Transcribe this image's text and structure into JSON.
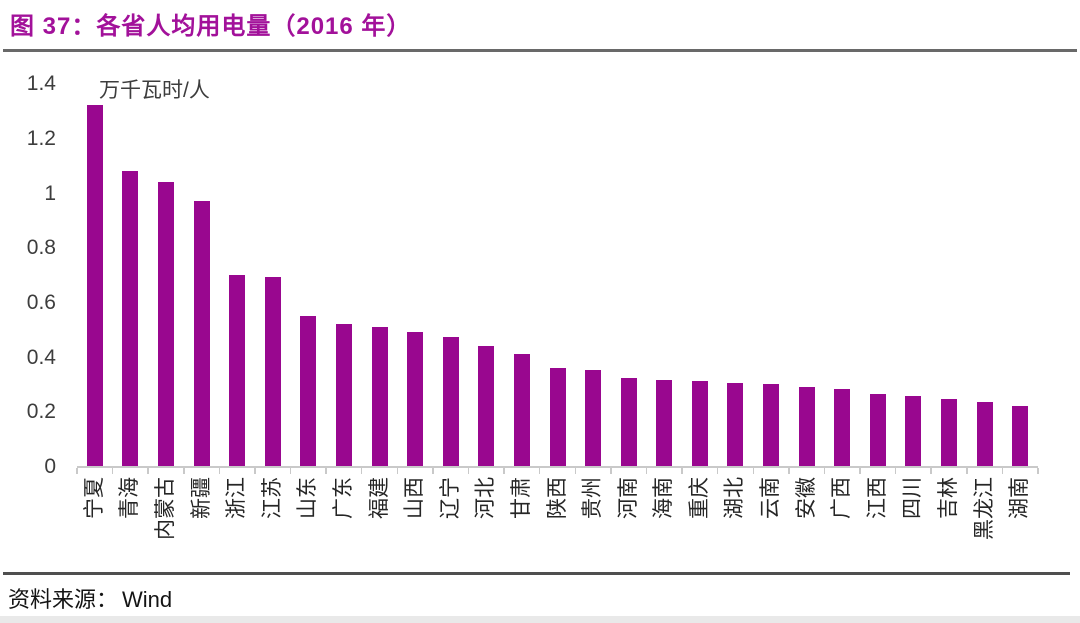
{
  "title": "图 37：各省人均用电量（2016 年）",
  "source": {
    "prefix": "资料来源：",
    "name": "Wind"
  },
  "colors": {
    "title": "#A2119A",
    "bar": "#99078F",
    "axis_line": "#C9C9C9",
    "axis_text": "#3D3D3D",
    "category_text": "#262626",
    "rule_dark": "#4F4F4F"
  },
  "chart_data": {
    "type": "bar",
    "title": "各省人均用电量（2016 年）",
    "unit_label": "万千瓦时/人",
    "xlabel": "",
    "ylabel": "万千瓦时/人",
    "categories": [
      "宁夏",
      "青海",
      "内蒙古",
      "新疆",
      "浙江",
      "江苏",
      "山东",
      "广东",
      "福建",
      "山西",
      "辽宁",
      "河北",
      "甘肃",
      "陕西",
      "贵州",
      "河南",
      "海南",
      "重庆",
      "湖北",
      "云南",
      "安徽",
      "广西",
      "江西",
      "四川",
      "吉林",
      "黑龙江",
      "湖南"
    ],
    "values": [
      1.32,
      1.08,
      1.04,
      0.97,
      0.7,
      0.69,
      0.55,
      0.52,
      0.51,
      0.49,
      0.47,
      0.44,
      0.41,
      0.36,
      0.35,
      0.32,
      0.315,
      0.31,
      0.302,
      0.298,
      0.29,
      0.28,
      0.262,
      0.256,
      0.246,
      0.235,
      0.22
    ],
    "ylim": [
      0,
      1.4
    ],
    "yticks": [
      "1.4",
      "1.2",
      "1",
      "0.8",
      "0.6",
      "0.4",
      "0.2",
      "0"
    ],
    "ytick_values": [
      1.4,
      1.2,
      1.0,
      0.8,
      0.6,
      0.4,
      0.2,
      0
    ],
    "grid": false,
    "legend_position": "none",
    "bar_color": "#99078F",
    "category_label_rotation": -90
  }
}
